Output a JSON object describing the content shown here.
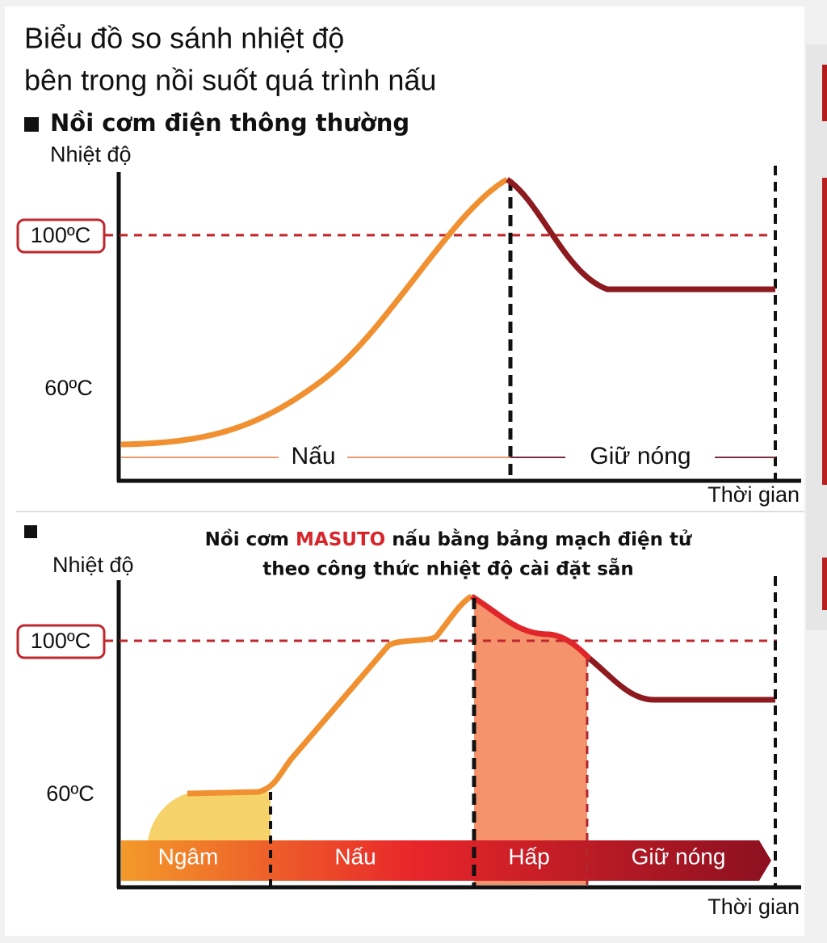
{
  "header": {
    "title_lines": [
      "Biểu đồ so sánh nhiệt độ",
      "bên trong nồi suốt quá trình nấu"
    ]
  },
  "charts": [
    {
      "heading": "Nồi cơm điện thông thường",
      "y_label": "Nhiệt độ",
      "y_marks": [
        "100ºC",
        "60ºC"
      ],
      "stages": [
        "Nấu",
        "Giữ nóng"
      ],
      "x_label": "Thời gian"
    },
    {
      "heading_parts": [
        "Nồi cơm",
        "MASUTO",
        "nấu bằng bảng mạch điện tử"
      ],
      "heading_line2": "theo công thức nhiệt độ cài đặt sẵn",
      "y_label": "Nhiệt độ",
      "y_marks": [
        "100ºC",
        "60ºC"
      ],
      "stages": [
        "Ngâm",
        "Nấu",
        "Hấp",
        "Giữ nóng"
      ],
      "x_label": "Thời gian"
    }
  ]
}
